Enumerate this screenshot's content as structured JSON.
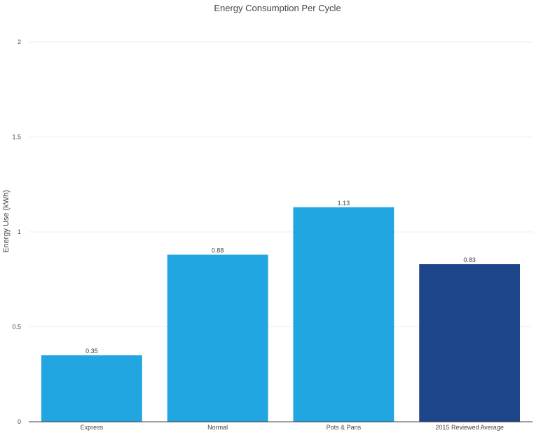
{
  "chart_data": {
    "type": "bar",
    "title": "Energy Consumption Per Cycle",
    "xlabel": "",
    "ylabel": "Energy Use (kWh)",
    "categories": [
      "Express",
      "Normal",
      "Pots & Pans",
      "2015 Reviewed Average"
    ],
    "values": [
      0.35,
      0.88,
      1.13,
      0.83
    ],
    "value_labels": [
      "0.35",
      "0.88",
      "1.13",
      "0.83"
    ],
    "bar_colors": [
      "#21a6e1",
      "#21a6e1",
      "#21a6e1",
      "#1d4589"
    ],
    "ylim": [
      0,
      2
    ],
    "yticks": [
      0,
      0.5,
      1,
      1.5,
      2
    ],
    "ytick_labels": [
      "0",
      "0.5",
      "1",
      "1.5",
      "2"
    ],
    "grid": true,
    "legend": false
  },
  "colors": {
    "primary_bar": "#21a6e1",
    "highlight_bar": "#1d4589",
    "gridline": "#eeeeee",
    "text": "#444444"
  }
}
